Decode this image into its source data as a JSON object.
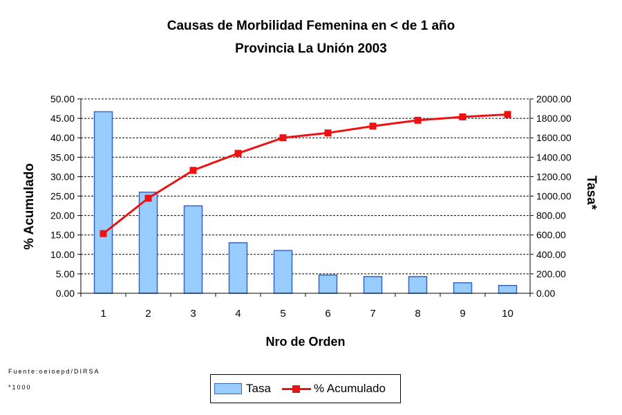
{
  "chart_data": {
    "type": "bar",
    "title": "Causas de Morbilidad Femenina en < de 1 año",
    "subtitle": "Provincia La Unión 2003",
    "xlabel": "Nro de Orden",
    "ylabel_left": "% Acumulado",
    "ylabel_right": "Tasa*",
    "categories": [
      "1",
      "2",
      "3",
      "4",
      "5",
      "6",
      "7",
      "8",
      "9",
      "10"
    ],
    "left_axis": {
      "min": 0,
      "max": 50,
      "step": 5,
      "ticks": [
        "0.00",
        "5.00",
        "10.00",
        "15.00",
        "20.00",
        "25.00",
        "30.00",
        "35.00",
        "40.00",
        "45.00",
        "50.00"
      ]
    },
    "right_axis": {
      "min": 0,
      "max": 2000,
      "step": 200,
      "ticks": [
        "0.00",
        "200.00",
        "400.00",
        "600.00",
        "800.00",
        "1000.00",
        "1200.00",
        "1400.00",
        "1600.00",
        "1800.00",
        "2000.00"
      ]
    },
    "series": [
      {
        "name": "Tasa",
        "type": "bar",
        "axis": "left",
        "values": [
          46.7,
          26.0,
          22.5,
          13.0,
          11.0,
          4.7,
          4.3,
          4.3,
          2.7,
          2.0
        ],
        "fill": "#99ccff",
        "stroke": "#3366cc"
      },
      {
        "name": "% Acumulado",
        "type": "line",
        "axis": "right",
        "values": [
          614,
          978,
          1265,
          1440,
          1600,
          1650,
          1720,
          1780,
          1815,
          1840
        ],
        "color": "#ee1111"
      }
    ],
    "grid": true,
    "legend_position": "bottom"
  },
  "notes": {
    "source": "Fuente:oeioepd/DIRSA",
    "footnote": "*1000"
  }
}
